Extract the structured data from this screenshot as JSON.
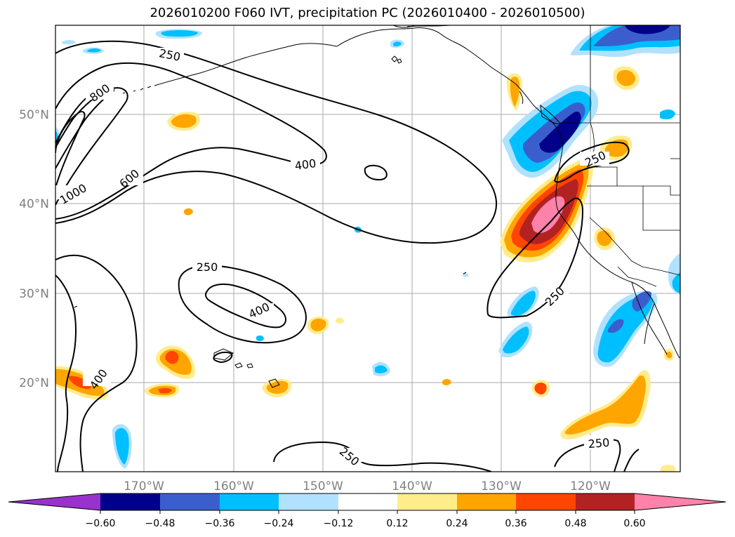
{
  "title": "2026010200 F060 IVT, precipitation PC (2026010400 - 2026010500)",
  "map": {
    "lat_labels": [
      "50°N",
      "40°N",
      "30°N",
      "20°N"
    ],
    "lon_labels": [
      "170°W",
      "160°W",
      "150°W",
      "140°W",
      "130°W",
      "120°W"
    ],
    "contour_labels": [
      "250",
      "400",
      "600",
      "800",
      "1000"
    ],
    "ivt_contour_levels": [
      250,
      400,
      600,
      800,
      1000
    ]
  },
  "colorbar": {
    "tick_labels": [
      "−0.60",
      "−0.48",
      "−0.36",
      "−0.24",
      "−0.12",
      "0.12",
      "0.24",
      "0.36",
      "0.48",
      "0.60"
    ],
    "levels": [
      -0.6,
      -0.48,
      -0.36,
      -0.24,
      -0.12,
      0.12,
      0.24,
      0.36,
      0.48,
      0.6
    ],
    "colors": [
      "#9932cc",
      "#00008b",
      "#3a5fcd",
      "#00bfff",
      "#b0e2ff",
      "#ffffff",
      "#ffec8b",
      "#ffa500",
      "#ff4500",
      "#b22222",
      "#ff82ab"
    ]
  }
}
